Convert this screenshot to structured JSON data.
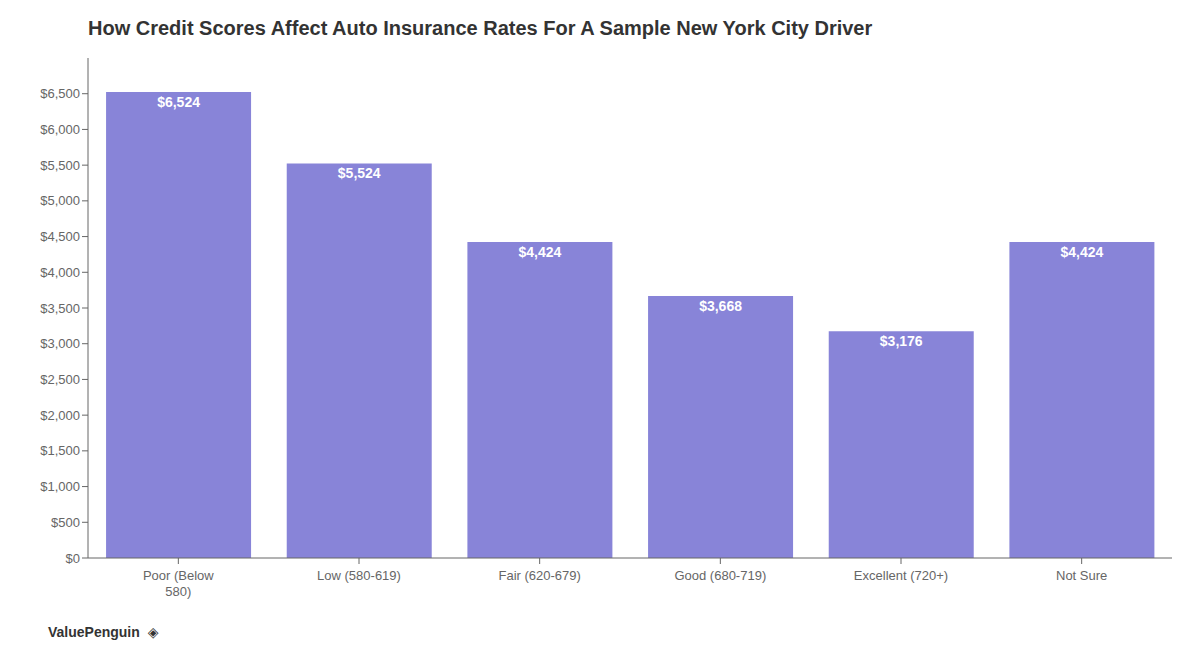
{
  "chart_data": {
    "type": "bar",
    "title": "How Credit Scores Affect Auto Insurance  Rates For A Sample New York City Driver",
    "categories": [
      "Poor (Below\n580)",
      "Low (580-619)",
      "Fair (620-679)",
      "Good (680-719)",
      "Excellent (720+)",
      "Not Sure"
    ],
    "values": [
      6524,
      5524,
      4424,
      3668,
      3176,
      4424
    ],
    "value_labels": [
      "$6,524",
      "$5,524",
      "$4,424",
      "$3,668",
      "$3,176",
      "$4,424"
    ],
    "data_labels": true,
    "color": "#8884d8",
    "ylim": [
      0,
      7000
    ],
    "yticks": [
      {
        "value": 0,
        "label": "$0"
      },
      {
        "value": 500,
        "label": "$500"
      },
      {
        "value": 1000,
        "label": "$1,000"
      },
      {
        "value": 1500,
        "label": "$1,500"
      },
      {
        "value": 2000,
        "label": "$2,000"
      },
      {
        "value": 2500,
        "label": "$2,500"
      },
      {
        "value": 3000,
        "label": "$3,000"
      },
      {
        "value": 3500,
        "label": "$3,500"
      },
      {
        "value": 4000,
        "label": "$4,000"
      },
      {
        "value": 4500,
        "label": "$4,500"
      },
      {
        "value": 5000,
        "label": "$5,000"
      },
      {
        "value": 5500,
        "label": "$5,500"
      },
      {
        "value": 6000,
        "label": "$6,000"
      },
      {
        "value": 6500,
        "label": "$6,500"
      }
    ],
    "grid": false,
    "annotations": [
      "ValuePenguin",
      "◈"
    ]
  }
}
